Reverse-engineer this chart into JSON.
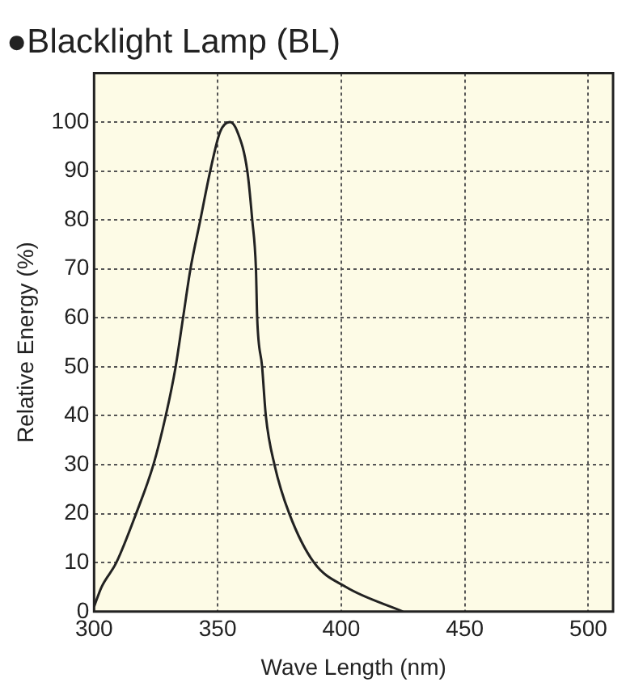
{
  "chart_data": {
    "type": "line",
    "title": "●Blacklight Lamp (BL)",
    "xlabel": "Wave Length (nm)",
    "ylabel": "Relative Energy (%)",
    "x": [
      300,
      303,
      309,
      317,
      324,
      329,
      333,
      336,
      339,
      343,
      347,
      351,
      355,
      358,
      362,
      364,
      365.5,
      366,
      368,
      369.5,
      373,
      379,
      389,
      402,
      425
    ],
    "series": [
      {
        "color": "#222222",
        "values": [
          1,
          5,
          10,
          20,
          30,
          40,
          50,
          60,
          70,
          80,
          90,
          98,
          100,
          98,
          90,
          80,
          70,
          60,
          50,
          40,
          30,
          20,
          10,
          5,
          0
        ]
      }
    ],
    "xlim": [
      300,
      510
    ],
    "ylim": [
      0,
      110
    ],
    "xticks": [
      300,
      350,
      400,
      450,
      500
    ],
    "yticks": [
      0,
      10,
      20,
      30,
      40,
      50,
      60,
      70,
      80,
      90,
      100
    ],
    "grid": true,
    "legend": false,
    "marker": "none",
    "line_style": "solid"
  }
}
